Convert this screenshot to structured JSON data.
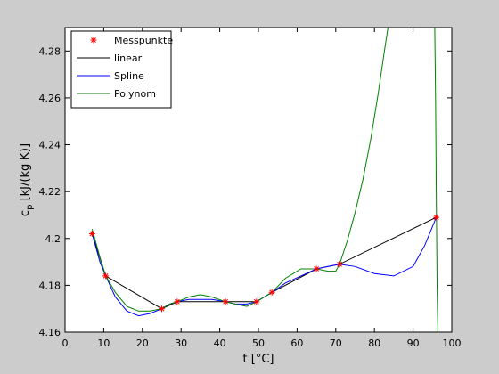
{
  "chart_data": {
    "type": "line",
    "xlabel": "t [°C]",
    "ylabel": "c_p [kJ/(kg K)]",
    "ylabel_main": "c",
    "ylabel_sub": "p",
    "ylabel_rest": " [kJ/(kg K)]",
    "xlim": [
      0,
      100
    ],
    "ylim": [
      4.16,
      4.29
    ],
    "xticks": [
      0,
      10,
      20,
      30,
      40,
      50,
      60,
      70,
      80,
      90,
      100
    ],
    "xtick_labels": [
      "0",
      "10",
      "20",
      "30",
      "40",
      "50",
      "60",
      "70",
      "80",
      "90",
      "100"
    ],
    "yticks": [
      4.16,
      4.18,
      4.2,
      4.22,
      4.24,
      4.26,
      4.28
    ],
    "ytick_labels": [
      "4.16",
      "4.18",
      "4.2",
      "4.22",
      "4.24",
      "4.26",
      "4.28"
    ],
    "grid": false,
    "legend_position": "top-left",
    "series": [
      {
        "name": "Messpunkte",
        "style": "markers",
        "color": "#ff0000",
        "x": [
          7,
          10.5,
          25,
          29,
          41.5,
          49.5,
          53.5,
          65,
          71,
          96
        ],
        "y": [
          4.202,
          4.184,
          4.17,
          4.173,
          4.173,
          4.173,
          4.177,
          4.187,
          4.189,
          4.209
        ]
      },
      {
        "name": "linear",
        "style": "line",
        "color": "#000000",
        "x": [
          7,
          10.5,
          25,
          29,
          41.5,
          49.5,
          53.5,
          65,
          71,
          96
        ],
        "y": [
          4.202,
          4.184,
          4.17,
          4.173,
          4.173,
          4.173,
          4.177,
          4.187,
          4.189,
          4.209
        ]
      },
      {
        "name": "Spline",
        "style": "line",
        "color": "#0000ff",
        "x": [
          7,
          9,
          10.5,
          13,
          16,
          19,
          22,
          25,
          27,
          29,
          32,
          35,
          38,
          41.5,
          44,
          47,
          49.5,
          51.5,
          53.5,
          57,
          61,
          65,
          68,
          71,
          75,
          80,
          85,
          90,
          93,
          96
        ],
        "y": [
          4.202,
          4.19,
          4.184,
          4.175,
          4.169,
          4.167,
          4.168,
          4.17,
          4.172,
          4.173,
          4.174,
          4.174,
          4.174,
          4.173,
          4.172,
          4.172,
          4.173,
          4.175,
          4.177,
          4.181,
          4.184,
          4.187,
          4.188,
          4.189,
          4.188,
          4.185,
          4.184,
          4.188,
          4.197,
          4.209
        ]
      },
      {
        "name": "Polynom",
        "style": "line",
        "color": "#008000",
        "x": [
          7,
          9,
          10.5,
          13,
          16,
          19,
          22,
          25,
          27,
          29,
          32,
          35,
          38,
          41.5,
          44,
          47,
          49.5,
          51.5,
          53.5,
          57,
          61,
          65,
          68,
          70,
          71,
          73,
          75,
          77,
          79,
          81,
          82.5,
          83.5,
          85,
          86
        ],
        "y": [
          4.204,
          4.192,
          4.184,
          4.177,
          4.171,
          4.169,
          4.169,
          4.17,
          4.172,
          4.173,
          4.175,
          4.176,
          4.175,
          4.173,
          4.172,
          4.171,
          4.173,
          4.175,
          4.177,
          4.183,
          4.187,
          4.187,
          4.186,
          4.186,
          4.189,
          4.199,
          4.211,
          4.225,
          4.242,
          4.262,
          4.279,
          4.29,
          4.29,
          4.29
        ]
      },
      {
        "name": "",
        "legend": false,
        "style": "line",
        "color": "#008000",
        "x": [
          95.6,
          95.8,
          96.0,
          96.2,
          96.4
        ],
        "y": [
          4.29,
          4.26,
          4.22,
          4.18,
          4.16
        ]
      }
    ]
  }
}
